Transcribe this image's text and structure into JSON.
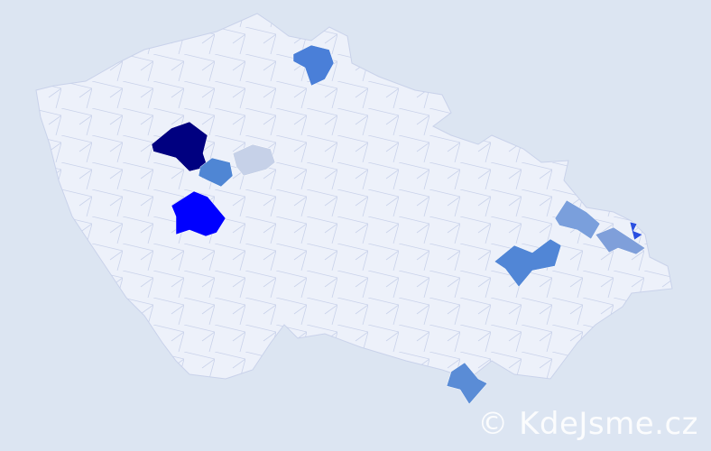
{
  "map": {
    "country_fill": "#edf1fa",
    "border_color": "#c9d2ea",
    "background": "#dce5f2",
    "highlighted_regions": [
      {
        "shade": "navy",
        "color": "#000080"
      },
      {
        "shade": "pale",
        "color": "#c6d1e8"
      },
      {
        "shade": "medium",
        "color": "#4f86d4"
      },
      {
        "shade": "bright",
        "color": "#0000ff"
      },
      {
        "shade": "medium",
        "color": "#4a7fd8"
      },
      {
        "shade": "medium",
        "color": "#5186d6"
      },
      {
        "shade": "medium",
        "color": "#5a8cd6"
      },
      {
        "shade": "light",
        "color": "#7a9fdc"
      },
      {
        "shade": "light",
        "color": "#7f9fda"
      },
      {
        "shade": "strong",
        "color": "#2a4fe0"
      }
    ]
  },
  "watermark": "© KdeJsme.cz"
}
